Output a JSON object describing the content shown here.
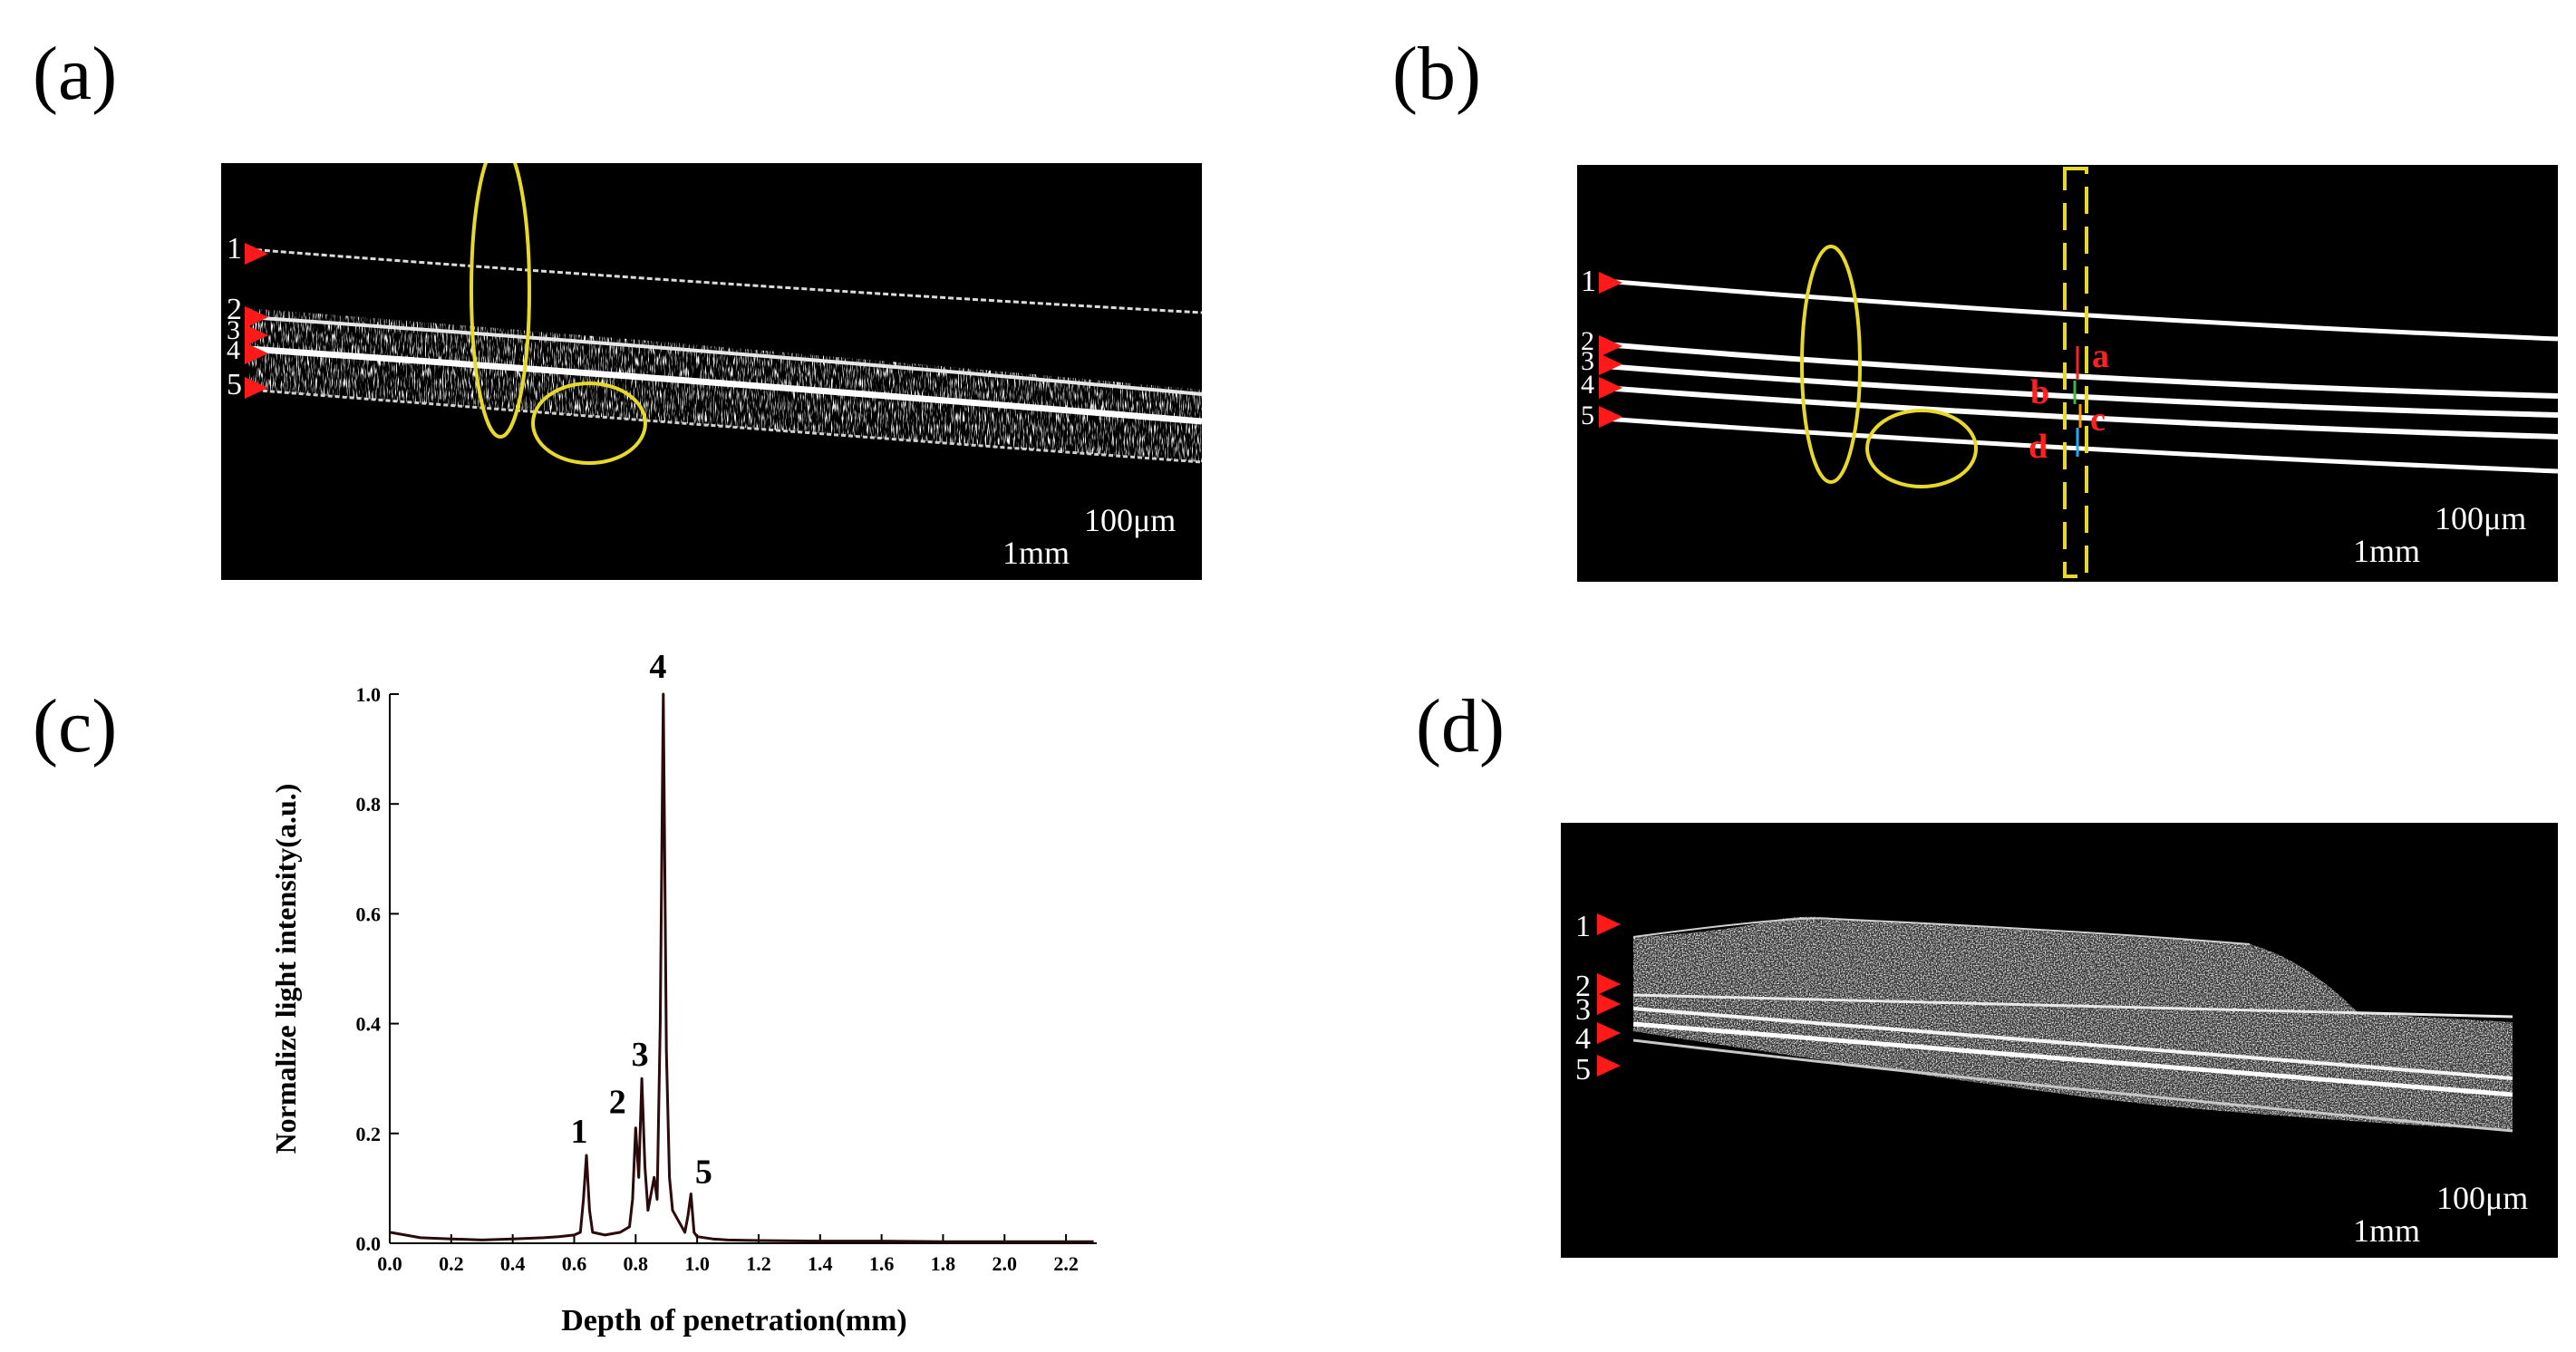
{
  "figure": {
    "panels": {
      "a": {
        "letter": "(a)",
        "layer_markers": [
          "1",
          "2",
          "3",
          "4",
          "5"
        ],
        "marker_color": "#ff1a1a",
        "highlight_color": "#e8d82a",
        "scale_vertical": "100μm",
        "scale_horizontal": "1mm"
      },
      "b": {
        "letter": "(b)",
        "layer_markers": [
          "1",
          "2",
          "3",
          "4",
          "5"
        ],
        "annotations": [
          "a",
          "b",
          "c",
          "d"
        ],
        "annotation_color": "#ff2020",
        "scale_vertical": "100μm",
        "scale_horizontal": "1mm"
      },
      "c": {
        "letter": "(c)"
      },
      "d": {
        "letter": "(d)",
        "layer_markers": [
          "1",
          "2",
          "3",
          "4",
          "5"
        ],
        "scale_vertical": "100μm",
        "scale_horizontal": "1mm"
      }
    }
  },
  "chart_data": {
    "type": "line",
    "xlabel": "Depth of penetration(mm)",
    "ylabel": "Normalize light intensity(a.u.)",
    "xlim": [
      0.0,
      2.3
    ],
    "ylim": [
      0.0,
      1.0
    ],
    "x_ticks": [
      "0.0",
      "0.2",
      "0.4",
      "0.6",
      "0.8",
      "1.0",
      "1.2",
      "1.4",
      "1.6",
      "1.8",
      "2.0",
      "2.2"
    ],
    "y_ticks": [
      "0.0",
      "0.2",
      "0.4",
      "0.6",
      "0.8",
      "1.0"
    ],
    "line_color": "#2a0a0a",
    "peaks": [
      {
        "label": "1",
        "x": 0.64,
        "y": 0.16
      },
      {
        "label": "2",
        "x": 0.8,
        "y": 0.21
      },
      {
        "label": "3",
        "x": 0.82,
        "y": 0.3
      },
      {
        "label": "4",
        "x": 0.89,
        "y": 1.0
      },
      {
        "label": "5",
        "x": 0.98,
        "y": 0.09
      }
    ],
    "x": [
      0.0,
      0.05,
      0.1,
      0.2,
      0.3,
      0.4,
      0.5,
      0.55,
      0.6,
      0.62,
      0.63,
      0.64,
      0.65,
      0.66,
      0.7,
      0.75,
      0.78,
      0.79,
      0.8,
      0.81,
      0.82,
      0.83,
      0.84,
      0.85,
      0.86,
      0.87,
      0.88,
      0.89,
      0.9,
      0.91,
      0.92,
      0.93,
      0.94,
      0.95,
      0.96,
      0.97,
      0.98,
      0.99,
      1.0,
      1.05,
      1.1,
      1.2,
      1.4,
      1.6,
      1.8,
      2.0,
      2.2,
      2.29
    ],
    "y": [
      0.02,
      0.015,
      0.01,
      0.008,
      0.006,
      0.008,
      0.01,
      0.012,
      0.015,
      0.02,
      0.08,
      0.16,
      0.06,
      0.02,
      0.015,
      0.02,
      0.03,
      0.08,
      0.21,
      0.12,
      0.3,
      0.14,
      0.06,
      0.09,
      0.12,
      0.08,
      0.4,
      1.0,
      0.35,
      0.12,
      0.06,
      0.05,
      0.04,
      0.03,
      0.02,
      0.05,
      0.09,
      0.02,
      0.012,
      0.008,
      0.006,
      0.005,
      0.004,
      0.004,
      0.003,
      0.003,
      0.003,
      0.003
    ]
  }
}
